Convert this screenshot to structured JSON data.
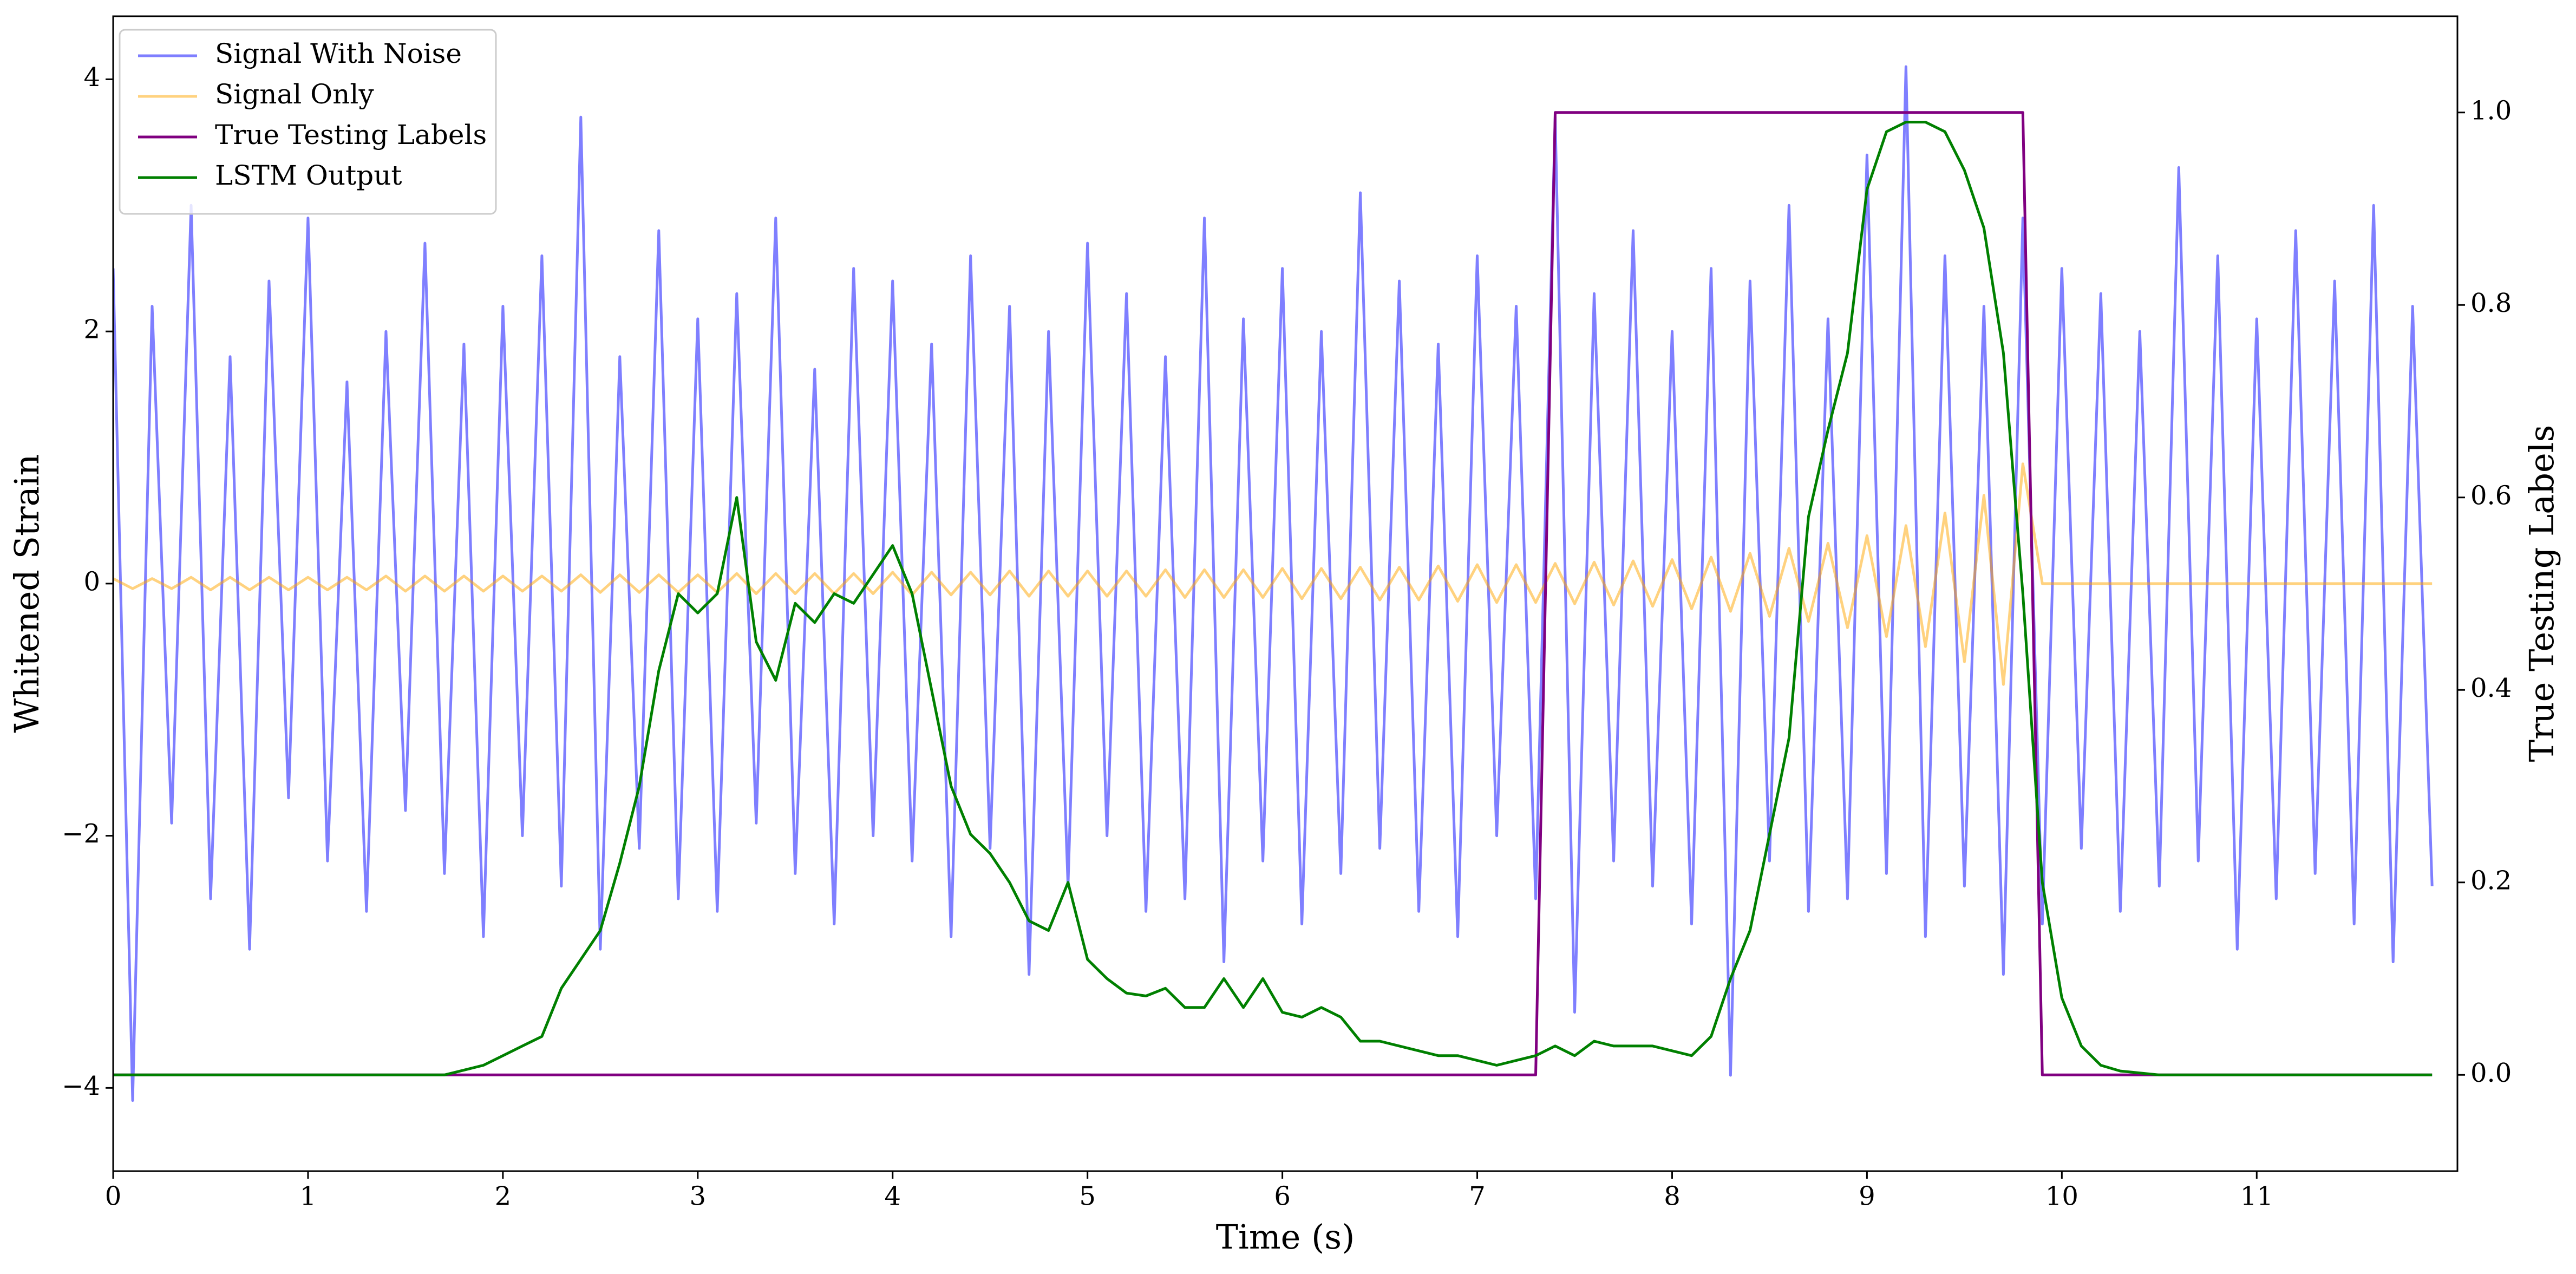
{
  "chart_data": {
    "type": "line",
    "xlabel": "Time (s)",
    "ylabel": "Whitened Strain",
    "y2label": "True Testing Labels",
    "xlim": [
      0,
      12.03
    ],
    "xticks": [
      0,
      1,
      2,
      3,
      4,
      5,
      6,
      7,
      8,
      9,
      10,
      11
    ],
    "ylim": [
      -4.66,
      4.5
    ],
    "yticks": [
      {
        "value": -4,
        "label": "−4"
      },
      {
        "value": -2,
        "label": "−2"
      },
      0,
      2,
      4
    ],
    "y2lim": [
      -0.1,
      1.1
    ],
    "y2ticks": [
      {
        "value": 0,
        "label": "0.0"
      },
      {
        "value": 0.2,
        "label": "0.2"
      },
      {
        "value": 0.4,
        "label": "0.4"
      },
      {
        "value": 0.6,
        "label": "0.6"
      },
      {
        "value": 0.8,
        "label": "0.8"
      },
      {
        "value": 1.0,
        "label": "1.0"
      }
    ],
    "legend": "upper left",
    "x": [
      0,
      0.1,
      0.2,
      0.3,
      0.4,
      0.5,
      0.6,
      0.7,
      0.8,
      0.9,
      1,
      1.1,
      1.2,
      1.3,
      1.4,
      1.5,
      1.6,
      1.7,
      1.8,
      1.9,
      2,
      2.1,
      2.2,
      2.3,
      2.4,
      2.5,
      2.6,
      2.7,
      2.8,
      2.9,
      3,
      3.1,
      3.2,
      3.3,
      3.4,
      3.5,
      3.6,
      3.7,
      3.8,
      3.9,
      4,
      4.1,
      4.2,
      4.3,
      4.4,
      4.5,
      4.6,
      4.7,
      4.8,
      4.9,
      5,
      5.1,
      5.2,
      5.3,
      5.4,
      5.5,
      5.6,
      5.7,
      5.8,
      5.9,
      6,
      6.1,
      6.2,
      6.3,
      6.4,
      6.5,
      6.6,
      6.7,
      6.8,
      6.9,
      7,
      7.1,
      7.2,
      7.3,
      7.4,
      7.5,
      7.6,
      7.7,
      7.8,
      7.9,
      8,
      8.1,
      8.2,
      8.3,
      8.4,
      8.5,
      8.6,
      8.7,
      8.8,
      8.9,
      9,
      9.1,
      9.2,
      9.3,
      9.4,
      9.5,
      9.6,
      9.7,
      9.8,
      9.9,
      10,
      10.1,
      10.2,
      10.3,
      10.4,
      10.5,
      10.6,
      10.7,
      10.8,
      10.9,
      11,
      11.1,
      11.2,
      11.3,
      11.4,
      11.5,
      11.6,
      11.7,
      11.8,
      11.9
    ],
    "series": [
      {
        "name": "Signal With Noise",
        "color": "#0000ff",
        "alpha": 0.5,
        "axis": "y",
        "values": [
          2.5,
          -4.1,
          2.2,
          -1.9,
          3.0,
          -2.5,
          1.8,
          -2.9,
          2.4,
          -1.7,
          2.9,
          -2.2,
          1.6,
          -2.6,
          2.0,
          -1.8,
          2.7,
          -2.3,
          1.9,
          -2.8,
          2.2,
          -2.0,
          2.6,
          -2.4,
          3.7,
          -2.9,
          1.8,
          -2.1,
          2.8,
          -2.5,
          2.1,
          -2.6,
          2.3,
          -1.9,
          2.9,
          -2.3,
          1.7,
          -2.7,
          2.5,
          -2.0,
          2.4,
          -2.2,
          1.9,
          -2.8,
          2.6,
          -2.1,
          2.2,
          -3.1,
          2.0,
          -2.4,
          2.7,
          -2.0,
          2.3,
          -2.6,
          1.8,
          -2.5,
          2.9,
          -3.0,
          2.1,
          -2.2,
          2.5,
          -2.7,
          2.0,
          -2.3,
          3.1,
          -2.1,
          2.4,
          -2.6,
          1.9,
          -2.8,
          2.6,
          -2.0,
          2.2,
          -2.5,
          3.7,
          -3.4,
          2.3,
          -2.2,
          2.8,
          -2.4,
          2.0,
          -2.7,
          2.5,
          -3.9,
          2.4,
          -2.2,
          3.0,
          -2.6,
          2.1,
          -2.5,
          3.4,
          -2.3,
          4.1,
          -2.8,
          2.6,
          -2.4,
          2.2,
          -3.1,
          2.9,
          -2.7,
          2.5,
          -2.1,
          2.3,
          -2.6,
          2.0,
          -2.4,
          3.3,
          -2.2,
          2.6,
          -2.9,
          2.1,
          -2.5,
          2.8,
          -2.3,
          2.4,
          -2.7,
          3.0,
          -3.0,
          2.2,
          -2.4
        ]
      },
      {
        "name": "Signal Only",
        "color": "#ffa500",
        "alpha": 0.5,
        "axis": "y",
        "values": [
          0.04,
          -0.04,
          0.04,
          -0.04,
          0.05,
          -0.05,
          0.05,
          -0.05,
          0.05,
          -0.05,
          0.05,
          -0.05,
          0.05,
          -0.05,
          0.06,
          -0.06,
          0.06,
          -0.06,
          0.06,
          -0.06,
          0.06,
          -0.06,
          0.06,
          -0.06,
          0.07,
          -0.07,
          0.07,
          -0.07,
          0.07,
          -0.07,
          0.07,
          -0.07,
          0.08,
          -0.08,
          0.08,
          -0.08,
          0.08,
          -0.08,
          0.08,
          -0.08,
          0.09,
          -0.09,
          0.09,
          -0.09,
          0.09,
          -0.09,
          0.1,
          -0.1,
          0.1,
          -0.1,
          0.1,
          -0.1,
          0.1,
          -0.1,
          0.11,
          -0.11,
          0.11,
          -0.11,
          0.11,
          -0.11,
          0.12,
          -0.12,
          0.12,
          -0.12,
          0.13,
          -0.13,
          0.13,
          -0.13,
          0.14,
          -0.14,
          0.15,
          -0.15,
          0.15,
          -0.15,
          0.16,
          -0.16,
          0.17,
          -0.17,
          0.18,
          -0.18,
          0.19,
          -0.2,
          0.21,
          -0.22,
          0.24,
          -0.26,
          0.28,
          -0.3,
          0.32,
          -0.35,
          0.38,
          -0.42,
          0.46,
          -0.5,
          0.56,
          -0.62,
          0.7,
          -0.8,
          0.95,
          0,
          0,
          0,
          0,
          0,
          0,
          0,
          0,
          0,
          0,
          0,
          0,
          0,
          0,
          0,
          0,
          0,
          0,
          0,
          0,
          0
        ]
      },
      {
        "name": "True Testing Labels",
        "color": "#800080",
        "alpha": 1,
        "axis": "y2",
        "values": [
          0,
          0,
          0,
          0,
          0,
          0,
          0,
          0,
          0,
          0,
          0,
          0,
          0,
          0,
          0,
          0,
          0,
          0,
          0,
          0,
          0,
          0,
          0,
          0,
          0,
          0,
          0,
          0,
          0,
          0,
          0,
          0,
          0,
          0,
          0,
          0,
          0,
          0,
          0,
          0,
          0,
          0,
          0,
          0,
          0,
          0,
          0,
          0,
          0,
          0,
          0,
          0,
          0,
          0,
          0,
          0,
          0,
          0,
          0,
          0,
          0,
          0,
          0,
          0,
          0,
          0,
          0,
          0,
          0,
          0,
          0,
          0,
          0,
          0,
          1,
          1,
          1,
          1,
          1,
          1,
          1,
          1,
          1,
          1,
          1,
          1,
          1,
          1,
          1,
          1,
          1,
          1,
          1,
          1,
          1,
          1,
          1,
          1,
          1,
          0,
          0,
          0,
          0,
          0,
          0,
          0,
          0,
          0,
          0,
          0,
          0,
          0,
          0,
          0,
          0,
          0,
          0,
          0,
          0,
          0
        ]
      },
      {
        "name": "LSTM Output",
        "color": "#008000",
        "alpha": 1,
        "axis": "y2",
        "values": [
          0,
          0,
          0,
          0,
          0,
          0,
          0,
          0,
          0,
          0,
          0,
          0,
          0,
          0,
          0,
          0,
          0,
          0,
          0.005,
          0.01,
          0.02,
          0.03,
          0.04,
          0.09,
          0.12,
          0.15,
          0.22,
          0.3,
          0.42,
          0.5,
          0.48,
          0.5,
          0.6,
          0.45,
          0.41,
          0.49,
          0.47,
          0.5,
          0.49,
          0.52,
          0.55,
          0.5,
          0.4,
          0.3,
          0.25,
          0.23,
          0.2,
          0.16,
          0.15,
          0.2,
          0.12,
          0.1,
          0.085,
          0.082,
          0.09,
          0.07,
          0.07,
          0.1,
          0.07,
          0.1,
          0.065,
          0.06,
          0.07,
          0.06,
          0.035,
          0.035,
          0.03,
          0.025,
          0.02,
          0.02,
          0.015,
          0.01,
          0.015,
          0.02,
          0.03,
          0.02,
          0.035,
          0.03,
          0.03,
          0.03,
          0.025,
          0.02,
          0.04,
          0.1,
          0.15,
          0.25,
          0.35,
          0.58,
          0.67,
          0.75,
          0.92,
          0.98,
          0.99,
          0.99,
          0.98,
          0.94,
          0.88,
          0.75,
          0.5,
          0.2,
          0.08,
          0.03,
          0.01,
          0.004,
          0.002,
          0,
          0,
          0,
          0,
          0,
          0,
          0,
          0,
          0,
          0,
          0,
          0,
          0,
          0,
          0
        ]
      }
    ]
  }
}
